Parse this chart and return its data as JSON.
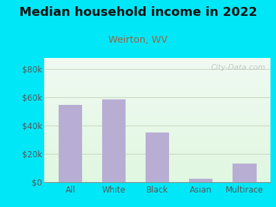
{
  "title": "Median household income in 2022",
  "subtitle": "Weirton, WV",
  "categories": [
    "All",
    "White",
    "Black",
    "Asian",
    "Multirace"
  ],
  "values": [
    55000,
    58500,
    35000,
    2500,
    13000
  ],
  "bar_color": "#b8aed4",
  "title_fontsize": 13,
  "subtitle_fontsize": 10,
  "subtitle_color": "#996644",
  "title_color": "#111111",
  "outer_bg": "#00e8f8",
  "yticks": [
    0,
    20000,
    40000,
    60000,
    80000
  ],
  "ytick_labels": [
    "$0",
    "$20k",
    "$40k",
    "$60k",
    "$80k"
  ],
  "ylim": [
    0,
    88000
  ],
  "watermark": "City-Data.com",
  "tick_color": "#555555",
  "grid_color": "#c8d8c0"
}
